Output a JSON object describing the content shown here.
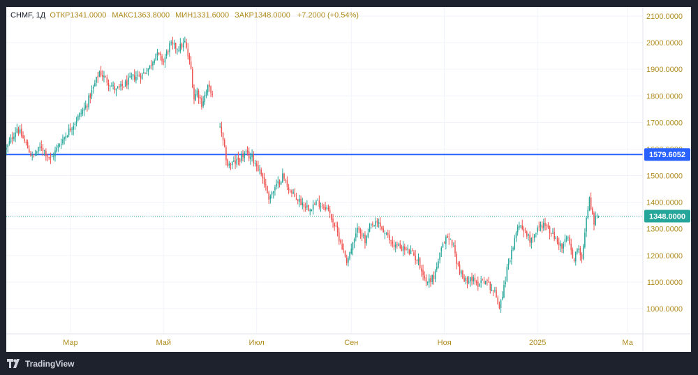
{
  "footer": {
    "brand": "TradingView",
    "logo_icon": "tradingview-logo-icon"
  },
  "legend": {
    "symbol": "CHMF, 1Д",
    "open_label": "ОТКР",
    "open": "1341.0000",
    "high_label": "МАКС",
    "high": "1363.8000",
    "low_label": "МИН",
    "low": "1331.6000",
    "close_label": "ЗАКР",
    "close": "1348.0000",
    "change": "+7.2000 (+0.54%)"
  },
  "colors": {
    "up": "#26a69a",
    "down": "#ef5350",
    "level_line": "#2962ff",
    "price_line": "#26a69a",
    "axis_text": "#b08c1e",
    "grid": "#f0f3fa",
    "background": "#ffffff",
    "frame": "#1e222d"
  },
  "chart_data": {
    "type": "candlestick",
    "title": "CHMF, 1Д",
    "ylim": [
      950,
      2100
    ],
    "y_ticks": [
      "1000.0000",
      "1100.0000",
      "1200.0000",
      "1300.0000",
      "1400.0000",
      "1500.0000",
      "1600.0000",
      "1700.0000",
      "1800.0000",
      "1900.0000",
      "2000.0000",
      "2100.0000"
    ],
    "y_tick_values": [
      1000,
      1100,
      1200,
      1300,
      1400,
      1500,
      1600,
      1700,
      1800,
      1900,
      2000,
      2100
    ],
    "x_labels": [
      {
        "label": "Мар",
        "day": 47
      },
      {
        "label": "Май",
        "day": 108
      },
      {
        "label": "Июл",
        "day": 169
      },
      {
        "label": "Сен",
        "day": 231
      },
      {
        "label": "Ноя",
        "day": 292
      },
      {
        "label": "2025",
        "day": 353
      },
      {
        "label": "Ма",
        "day": 412
      }
    ],
    "x_range_days": [
      5,
      422
    ],
    "level_line": {
      "value": 1579.6052,
      "label": "1579.6052"
    },
    "last_price": {
      "value": 1348.0,
      "label": "1348.0000"
    },
    "anchors": [
      [
        5,
        1600
      ],
      [
        12,
        1680
      ],
      [
        16,
        1640
      ],
      [
        22,
        1570
      ],
      [
        28,
        1610
      ],
      [
        34,
        1560
      ],
      [
        40,
        1620
      ],
      [
        46,
        1670
      ],
      [
        52,
        1720
      ],
      [
        57,
        1760
      ],
      [
        62,
        1830
      ],
      [
        66,
        1890
      ],
      [
        72,
        1850
      ],
      [
        77,
        1820
      ],
      [
        82,
        1840
      ],
      [
        88,
        1870
      ],
      [
        94,
        1880
      ],
      [
        99,
        1910
      ],
      [
        103,
        1960
      ],
      [
        108,
        1930
      ],
      [
        112,
        1990
      ],
      [
        118,
        1980
      ],
      [
        122,
        2000
      ],
      [
        126,
        1900
      ],
      [
        128,
        1790
      ],
      [
        130,
        1820
      ],
      [
        133,
        1770
      ],
      [
        137,
        1830
      ],
      [
        139,
        1820
      ],
      [
        146,
        1650
      ],
      [
        150,
        1540
      ],
      [
        155,
        1550
      ],
      [
        161,
        1580
      ],
      [
        166,
        1570
      ],
      [
        172,
        1510
      ],
      [
        177,
        1420
      ],
      [
        181,
        1450
      ],
      [
        186,
        1500
      ],
      [
        192,
        1430
      ],
      [
        198,
        1400
      ],
      [
        203,
        1380
      ],
      [
        209,
        1400
      ],
      [
        215,
        1380
      ],
      [
        219,
        1330
      ],
      [
        224,
        1250
      ],
      [
        228,
        1180
      ],
      [
        232,
        1240
      ],
      [
        236,
        1310
      ],
      [
        240,
        1250
      ],
      [
        244,
        1310
      ],
      [
        249,
        1320
      ],
      [
        253,
        1280
      ],
      [
        259,
        1240
      ],
      [
        264,
        1230
      ],
      [
        270,
        1210
      ],
      [
        275,
        1180
      ],
      [
        280,
        1100
      ],
      [
        285,
        1120
      ],
      [
        289,
        1200
      ],
      [
        293,
        1270
      ],
      [
        297,
        1250
      ],
      [
        301,
        1160
      ],
      [
        305,
        1100
      ],
      [
        309,
        1120
      ],
      [
        313,
        1090
      ],
      [
        317,
        1110
      ],
      [
        320,
        1100
      ],
      [
        325,
        1060
      ],
      [
        328,
        1010
      ],
      [
        331,
        1080
      ],
      [
        334,
        1180
      ],
      [
        337,
        1220
      ],
      [
        340,
        1320
      ],
      [
        344,
        1300
      ],
      [
        348,
        1260
      ],
      [
        353,
        1300
      ],
      [
        357,
        1320
      ],
      [
        361,
        1290
      ],
      [
        365,
        1260
      ],
      [
        369,
        1230
      ],
      [
        373,
        1270
      ],
      [
        376,
        1180
      ],
      [
        379,
        1220
      ],
      [
        382,
        1200
      ],
      [
        385,
        1340
      ],
      [
        387,
        1410
      ],
      [
        390,
        1330
      ],
      [
        393,
        1350
      ]
    ]
  }
}
